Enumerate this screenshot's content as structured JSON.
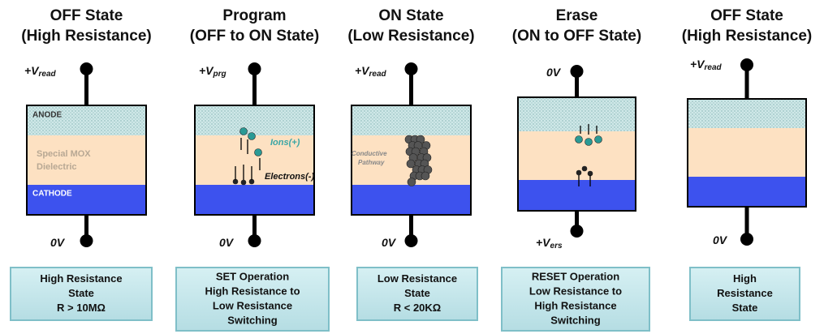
{
  "panels": [
    {
      "title": [
        "OFF State",
        "(High Resistance)"
      ],
      "top_voltage": {
        "text": "+V",
        "sub": "read"
      },
      "bottom_voltage": {
        "text": "0V"
      },
      "labels": [
        "ANODE",
        "Special MOX",
        "Dielectric",
        "CATHODE"
      ],
      "status": [
        "High Resistance",
        "State",
        "R > 10MΩ"
      ]
    },
    {
      "title": [
        "Program",
        "(OFF to ON State)"
      ],
      "top_voltage": {
        "text": "+V",
        "sub": "prg"
      },
      "bottom_voltage": {
        "text": "0V"
      },
      "labels": [
        "Ions(+)",
        "Electrons(-)"
      ],
      "status": [
        "SET Operation",
        "High Resistance to",
        "Low Resistance",
        "Switching"
      ]
    },
    {
      "title": [
        "ON State",
        "(Low Resistance)"
      ],
      "top_voltage": {
        "text": "+V",
        "sub": "read"
      },
      "bottom_voltage": {
        "text": "0V"
      },
      "labels": [
        "Conductive",
        "Pathway"
      ],
      "status": [
        "Low Resistance",
        "State",
        "R < 20KΩ"
      ]
    },
    {
      "title": [
        "Erase",
        "(ON to OFF State)"
      ],
      "top_voltage": {
        "text": "0V"
      },
      "bottom_voltage": {
        "text": "+V",
        "sub": "ers"
      },
      "labels": [],
      "status": [
        "RESET Operation",
        "Low Resistance to",
        "High Resistance",
        "Switching"
      ]
    },
    {
      "title": [
        "OFF State",
        "(High Resistance)"
      ],
      "top_voltage": {
        "text": "+V",
        "sub": "read"
      },
      "bottom_voltage": {
        "text": "0V"
      },
      "labels": [],
      "status": [
        "High",
        "Resistance",
        "State"
      ]
    }
  ]
}
